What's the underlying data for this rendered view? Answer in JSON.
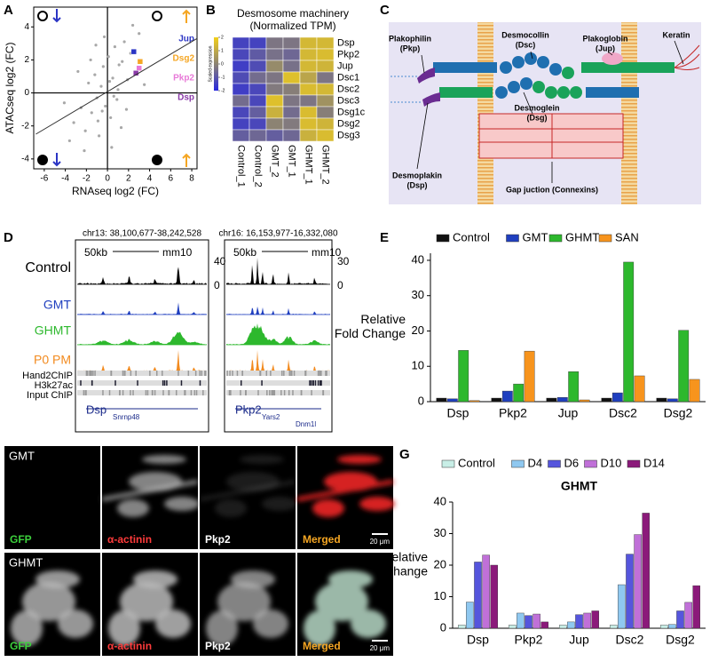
{
  "panel_labels": [
    "A",
    "B",
    "C",
    "D",
    "E",
    "F",
    "G"
  ],
  "chart_data": [
    {
      "type": "scatter",
      "xlabel": "RNAseq log2 (FC)",
      "ylabel": "ATACseq log2 (FC)",
      "xlim": [
        -7,
        8.5
      ],
      "ylim": [
        -4.6,
        5.2
      ],
      "xticks": [
        -6,
        -4,
        -2,
        0,
        2,
        4,
        6,
        8
      ],
      "yticks": [
        -4,
        -2,
        0,
        2,
        4
      ],
      "series": [
        {
          "color": "#a8a8a8",
          "x": [
            -3.2,
            -2.5,
            -2.1,
            -1.8,
            -1.5,
            -1.2,
            -1.0,
            -0.8,
            -0.6,
            -0.4,
            -0.2,
            0.1,
            0.3,
            0.5,
            0.7,
            0.9,
            1.1,
            1.3,
            1.6,
            1.9,
            2.2,
            2.6,
            3.0,
            -4.1,
            -3.6,
            -1.1,
            0.4,
            1.0,
            -0.3,
            -2.8,
            1.8,
            2.4,
            -0.9,
            0.6,
            -1.6,
            3.5,
            -2.2,
            0.2,
            1.4,
            -0.5
          ],
          "y": [
            -1.8,
            -0.9,
            -2.3,
            0.6,
            -1.2,
            1.1,
            -0.3,
            -2.6,
            0.4,
            1.6,
            -0.8,
            2.2,
            -1.5,
            0.9,
            2.8,
            -0.4,
            1.7,
            -2.1,
            3.1,
            0.8,
            2.4,
            1.2,
            3.6,
            -0.6,
            -2.9,
            2.9,
            -3.3,
            0.2,
            3.4,
            1.3,
            -1.0,
            4.1,
            -1.7,
            -0.2,
            2.0,
            0.5,
            -3.5,
            0.7,
            1.9,
            -1.1
          ]
        },
        {
          "name": "Jup",
          "color": "#2b35c4",
          "x": [
            2.5
          ],
          "y": [
            2.5
          ]
        },
        {
          "name": "Dsg2",
          "color": "#f5a623",
          "x": [
            3.1
          ],
          "y": [
            1.9
          ]
        },
        {
          "name": "Pkp2",
          "color": "#e87ad8",
          "x": [
            3.0
          ],
          "y": [
            1.5
          ]
        },
        {
          "name": "Dsp",
          "color": "#8a3aa8",
          "x": [
            2.7
          ],
          "y": [
            1.2
          ]
        }
      ],
      "fit_line": {
        "x": [
          -6.8,
          8.5
        ],
        "y": [
          -2.5,
          3.3
        ]
      }
    },
    {
      "type": "heatmap",
      "title": "Desmosome machinery",
      "subtitle": "(Normalized TPM)",
      "rows": [
        "Dsp",
        "Pkp2",
        "Jup",
        "Dsc1",
        "Dsc2",
        "Dsc3",
        "Dsg1c",
        "Dsg2",
        "Dsg3"
      ],
      "columns": [
        "Control_1",
        "Control_2",
        "GMT_2",
        "GMT_1",
        "GHMT_1",
        "GHMT_2"
      ],
      "values": [
        [
          -1.4,
          -1.4,
          -0.3,
          -0.3,
          1.4,
          1.4
        ],
        [
          -1.3,
          -0.9,
          -0.4,
          -0.6,
          1.4,
          1.5
        ],
        [
          -1.5,
          -1.2,
          0.2,
          -0.4,
          1.4,
          1.3
        ],
        [
          -1.2,
          -0.5,
          -0.3,
          1.6,
          0.9,
          -0.3
        ],
        [
          -1.5,
          -1.3,
          -0.2,
          -0.1,
          1.5,
          1.4
        ],
        [
          -0.5,
          -1.3,
          1.6,
          -0.3,
          -0.3,
          0.4
        ],
        [
          -1.3,
          -0.8,
          1.2,
          -0.5,
          1.5,
          -0.1
        ],
        [
          -1.4,
          -1.3,
          0.0,
          -0.2,
          1.5,
          1.3
        ],
        [
          -0.8,
          -0.6,
          -0.8,
          -0.6,
          1.2,
          1.5
        ]
      ],
      "zlim": [
        -2,
        2
      ],
      "colors": [
        "#2727e0",
        "#8c8373",
        "#f2cf1a"
      ],
      "colorbar_label": "Scaled expression",
      "colorbar_ticks": [
        2,
        1,
        0,
        -1,
        -2
      ]
    },
    {
      "type": "bar",
      "ylabel": [
        "Relative",
        "Fold Change"
      ],
      "categories": [
        "Dsp",
        "Pkp2",
        "Jup",
        "Dsc2",
        "Dsg2"
      ],
      "ylim": [
        0,
        42
      ],
      "yticks": [
        0,
        10,
        20,
        30,
        40
      ],
      "series": [
        {
          "name": "Control",
          "color": "#111111",
          "values": [
            1,
            1,
            1,
            1,
            1
          ]
        },
        {
          "name": "GMT",
          "color": "#1f3fbf",
          "values": [
            0.8,
            3,
            1.2,
            2.5,
            0.8
          ]
        },
        {
          "name": "GHMT",
          "color": "#2db82d",
          "values": [
            14.5,
            5,
            8.5,
            39.5,
            20.2
          ]
        },
        {
          "name": "SAN",
          "color": "#f7941d",
          "values": [
            0.3,
            14.3,
            0.5,
            7.3,
            6.3
          ]
        }
      ]
    },
    {
      "type": "bar",
      "title": "GHMT",
      "ylabel": [
        "Relative",
        "Fold Change"
      ],
      "categories": [
        "Dsp",
        "Pkp2",
        "Jup",
        "Dsc2",
        "Dsg2"
      ],
      "ylim": [
        0,
        40
      ],
      "yticks": [
        0,
        10,
        20,
        30,
        40
      ],
      "series": [
        {
          "name": "Control",
          "color": "#c8eee6",
          "values": [
            1,
            1,
            1,
            1,
            1
          ]
        },
        {
          "name": "D4",
          "color": "#8fc8f0",
          "values": [
            8.3,
            4.8,
            2,
            13.8,
            1.2
          ]
        },
        {
          "name": "D6",
          "color": "#5555dd",
          "values": [
            21,
            4,
            4.3,
            23.5,
            5.5
          ]
        },
        {
          "name": "D10",
          "color": "#c070d8",
          "values": [
            23.2,
            4.5,
            4.8,
            29.7,
            8.2
          ]
        },
        {
          "name": "D14",
          "color": "#8b1a7a",
          "values": [
            20,
            2,
            5.5,
            36.5,
            13.5
          ]
        }
      ]
    }
  ],
  "diagram": {
    "labels": [
      [
        "Plakophilin",
        "(Pkp)"
      ],
      [
        "Desmocollin",
        "(Dsc)"
      ],
      [
        "Plakoglobin",
        "(Jup)"
      ],
      [
        "Keratin"
      ],
      [
        "Desmoglein",
        "(Dsg)"
      ],
      [
        "Desmoplakin",
        "(Dsp)"
      ],
      [
        "Gap juction (Connexins)"
      ]
    ]
  },
  "tracks": {
    "regions": [
      {
        "coords": "chr13: 38,100,677-38,242,528",
        "scale": "50kb",
        "assembly": "mm10",
        "axis": [
          40,
          0
        ],
        "genes": [
          "Dsp",
          "Snrnp48"
        ]
      },
      {
        "coords": "chr16: 16,153,977-16,332,080",
        "scale": "50kb",
        "assembly": "mm10",
        "axis": [
          30,
          0
        ],
        "genes": [
          "Pkp2",
          "Yars2",
          "Dnm1l"
        ]
      }
    ],
    "samples": [
      "Control",
      "GMT",
      "GHMT",
      "P0 PM"
    ],
    "sample_colors": [
      "#000000",
      "#1f3fbf",
      "#2db82d",
      "#f28a1e"
    ],
    "chip": [
      "Hand2ChIP",
      "H3k27ac",
      "Input ChIP"
    ]
  },
  "micrographs": {
    "rows": [
      "GMT",
      "GHMT"
    ],
    "channels": [
      "GFP",
      "α-actinin",
      "Pkp2",
      "Merged"
    ],
    "channel_colors": [
      "#3ccf3c",
      "#ff3b3b",
      "#ffffff",
      "#f5a623"
    ],
    "scale_bar": [
      "20 μm",
      "20 μm"
    ]
  }
}
